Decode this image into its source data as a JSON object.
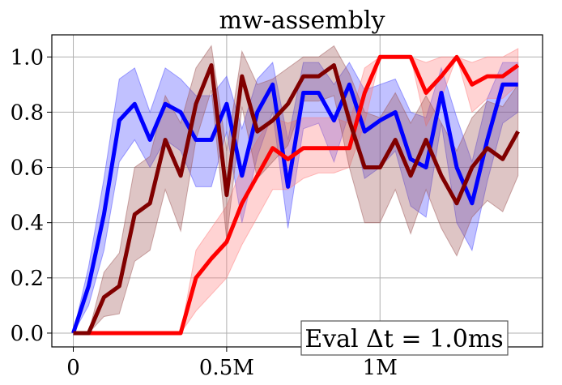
{
  "chart_data": {
    "type": "line",
    "title": "mw-assembly",
    "xlabel": "",
    "ylabel": "",
    "xlim": [
      -70000,
      1530000
    ],
    "ylim": [
      -0.05,
      1.08
    ],
    "grid": true,
    "x_ticks": [
      {
        "value": 0,
        "label": "0"
      },
      {
        "value": 500000,
        "label": "0.5M"
      },
      {
        "value": 1000000,
        "label": "1M"
      }
    ],
    "y_ticks": [
      {
        "value": 0.0,
        "label": "0.0"
      },
      {
        "value": 0.2,
        "label": "0.2"
      },
      {
        "value": 0.4,
        "label": "0.4"
      },
      {
        "value": 0.6,
        "label": "0.6"
      },
      {
        "value": 0.8,
        "label": "0.8"
      },
      {
        "value": 1.0,
        "label": "1.0"
      }
    ],
    "annotation": "Eval Δt = 1.0ms",
    "x": [
      0,
      50000,
      100000,
      150000,
      200000,
      250000,
      300000,
      350000,
      400000,
      450000,
      500000,
      550000,
      600000,
      650000,
      700000,
      750000,
      800000,
      850000,
      900000,
      950000,
      1000000,
      1050000,
      1100000,
      1150000,
      1200000,
      1250000,
      1300000,
      1350000,
      1400000,
      1450000
    ],
    "series": [
      {
        "color": "#0000ff",
        "band_color": "#4d4dff",
        "values": [
          0.0,
          0.17,
          0.43,
          0.77,
          0.83,
          0.7,
          0.83,
          0.8,
          0.7,
          0.7,
          0.83,
          0.57,
          0.8,
          0.9,
          0.53,
          0.87,
          0.87,
          0.77,
          0.9,
          0.73,
          0.77,
          0.8,
          0.63,
          0.6,
          0.87,
          0.6,
          0.47,
          0.7,
          0.9,
          0.9
        ],
        "lower": [
          0.0,
          0.1,
          0.3,
          0.62,
          0.7,
          0.6,
          0.7,
          0.66,
          0.53,
          0.53,
          0.73,
          0.4,
          0.64,
          0.8,
          0.38,
          0.74,
          0.76,
          0.62,
          0.8,
          0.56,
          0.6,
          0.66,
          0.46,
          0.42,
          0.76,
          0.4,
          0.3,
          0.55,
          0.76,
          0.8
        ],
        "upper": [
          0.0,
          0.24,
          0.56,
          0.92,
          0.96,
          0.8,
          0.96,
          0.92,
          0.86,
          0.86,
          0.93,
          0.74,
          0.92,
          0.98,
          0.7,
          0.98,
          0.98,
          0.9,
          0.98,
          0.88,
          0.9,
          0.92,
          0.8,
          0.78,
          0.96,
          0.78,
          0.62,
          0.85,
          0.98,
          0.98
        ]
      },
      {
        "color": "#ff0000",
        "band_color": "#ff8080",
        "values": [
          0.0,
          0.0,
          0.0,
          0.0,
          0.0,
          0.0,
          0.0,
          0.0,
          0.2,
          0.27,
          0.33,
          0.47,
          0.57,
          0.67,
          0.63,
          0.67,
          0.67,
          0.67,
          0.67,
          0.87,
          1.0,
          1.0,
          1.0,
          0.87,
          0.93,
          1.0,
          0.9,
          0.93,
          0.93,
          0.97
        ],
        "lower": [
          0.0,
          0.0,
          0.0,
          0.0,
          0.0,
          0.0,
          0.0,
          0.0,
          0.08,
          0.14,
          0.2,
          0.32,
          0.42,
          0.52,
          0.52,
          0.56,
          0.58,
          0.58,
          0.6,
          0.76,
          1.0,
          1.0,
          1.0,
          0.75,
          0.85,
          1.0,
          0.8,
          0.85,
          0.85,
          0.9
        ],
        "upper": [
          0.0,
          0.0,
          0.0,
          0.0,
          0.0,
          0.0,
          0.0,
          0.0,
          0.3,
          0.38,
          0.46,
          0.6,
          0.7,
          0.78,
          0.76,
          0.78,
          0.78,
          0.78,
          0.76,
          0.96,
          1.0,
          1.0,
          1.0,
          0.98,
          1.0,
          1.0,
          0.98,
          1.0,
          1.0,
          1.03
        ]
      },
      {
        "color": "#800000",
        "band_color": "#a05a5a",
        "values": [
          0.0,
          0.0,
          0.13,
          0.17,
          0.43,
          0.47,
          0.7,
          0.57,
          0.83,
          0.97,
          0.5,
          0.93,
          0.73,
          0.77,
          0.83,
          0.93,
          0.93,
          0.97,
          0.77,
          0.6,
          0.6,
          0.7,
          0.57,
          0.7,
          0.57,
          0.47,
          0.6,
          0.67,
          0.63,
          0.73
        ],
        "lower": [
          0.0,
          0.0,
          0.06,
          0.07,
          0.26,
          0.3,
          0.52,
          0.37,
          0.7,
          0.88,
          0.34,
          0.82,
          0.56,
          0.62,
          0.68,
          0.84,
          0.84,
          0.86,
          0.6,
          0.4,
          0.4,
          0.52,
          0.36,
          0.52,
          0.38,
          0.28,
          0.42,
          0.48,
          0.44,
          0.57
        ],
        "upper": [
          0.0,
          0.0,
          0.22,
          0.29,
          0.6,
          0.64,
          0.86,
          0.76,
          0.96,
          1.04,
          0.66,
          1.02,
          0.9,
          0.92,
          0.96,
          1.0,
          1.0,
          1.04,
          0.94,
          0.8,
          0.78,
          0.87,
          0.76,
          0.86,
          0.76,
          0.66,
          0.78,
          0.84,
          0.82,
          0.9
        ]
      }
    ]
  }
}
